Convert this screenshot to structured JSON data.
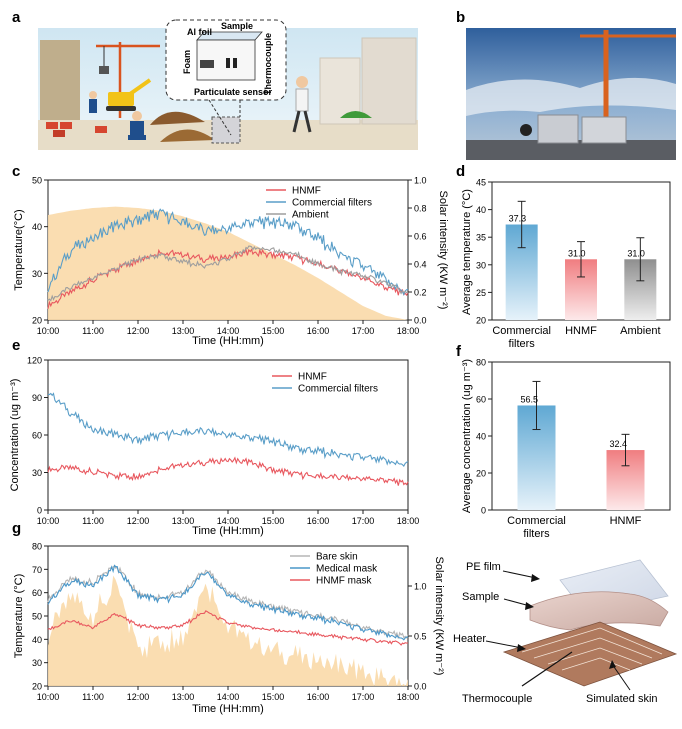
{
  "panels": {
    "a": {
      "label": "a",
      "inset_labels": {
        "al_foil": "Al foil",
        "sample": "Sample",
        "foam": "Foam",
        "thermocouple": "Thermocouple",
        "particulate_sensor": "Particulate sensor"
      }
    },
    "b": {
      "label": "b"
    },
    "c": {
      "label": "c"
    },
    "d": {
      "label": "d"
    },
    "e": {
      "label": "e"
    },
    "f": {
      "label": "f"
    },
    "g": {
      "label": "g"
    },
    "h_diagram": {
      "labels": {
        "pe_film": "PE film",
        "sample": "Sample",
        "heater": "Heater",
        "thermocouple": "Thermocouple",
        "simulated_skin": "Simulated skin"
      }
    }
  },
  "time_ticks": [
    "10:00",
    "11:00",
    "12:00",
    "13:00",
    "14:00",
    "15:00",
    "16:00",
    "17:00",
    "18:00"
  ],
  "chart_data": [
    {
      "id": "c",
      "type": "line",
      "xlabel": "Time (HH:mm)",
      "ylabel": "Temperature(°C)",
      "y2label": "Solar intensity (KW m⁻²)",
      "ylim": [
        20,
        50
      ],
      "yticks": [
        "20",
        "30",
        "40",
        "50"
      ],
      "y2lim": [
        0,
        1.0
      ],
      "y2ticks": [
        "0.0",
        "0.2",
        "0.4",
        "0.6",
        "0.8",
        "1.0"
      ],
      "legend_position": "top-center",
      "x_hours": [
        10,
        10.5,
        11,
        11.5,
        12,
        12.5,
        13,
        13.5,
        14,
        14.5,
        15,
        15.5,
        16,
        16.5,
        17,
        17.5,
        18
      ],
      "series": [
        {
          "name": "HNMF",
          "color": "#e8585f",
          "values": [
            23,
            26,
            28.5,
            31,
            33,
            34.5,
            34,
            33,
            33.5,
            34.5,
            34,
            33.5,
            32,
            30.5,
            29,
            27,
            25.5
          ]
        },
        {
          "name": "Commercial filters",
          "color": "#5a9ec8",
          "values": [
            27,
            35,
            37.5,
            40,
            41.5,
            43,
            41,
            39,
            39.5,
            41,
            41,
            40.5,
            37.5,
            34,
            31.5,
            28.5,
            25.5
          ]
        },
        {
          "name": "Ambient",
          "color": "#9e9e9e",
          "values": [
            24,
            27,
            29,
            31,
            33,
            34,
            32.5,
            31.5,
            33,
            35.5,
            35,
            34,
            32,
            30.5,
            29.5,
            28,
            25.5
          ]
        }
      ],
      "area": {
        "color": "#fad9a9",
        "axis": "y2",
        "values": [
          0.75,
          0.78,
          0.8,
          0.81,
          0.8,
          0.78,
          0.74,
          0.69,
          0.63,
          0.55,
          0.47,
          0.39,
          0.3,
          0.2,
          0.1,
          0.03,
          0.0
        ]
      }
    },
    {
      "id": "d",
      "type": "bar",
      "ylabel": "Average temperature (°C)",
      "ylim": [
        20,
        45
      ],
      "yticks": [
        "20",
        "25",
        "30",
        "35",
        "40",
        "45"
      ],
      "categories": [
        "Commercial filters",
        "HNMF",
        "Ambient"
      ],
      "values": [
        37.3,
        31.0,
        31.0
      ],
      "errors": [
        4.2,
        3.2,
        3.9
      ],
      "value_labels": [
        "37.3",
        "31.0",
        "31.0"
      ],
      "colors": [
        "#5fa8d3",
        "#f07d80",
        "#8f8f8f"
      ]
    },
    {
      "id": "e",
      "type": "line",
      "xlabel": "Time (HH:mm)",
      "ylabel": "Concentration (ug m⁻³)",
      "ylim": [
        0,
        120
      ],
      "yticks": [
        "0",
        "30",
        "60",
        "90",
        "120"
      ],
      "legend_position": "top-right",
      "x_hours": [
        10,
        10.5,
        11,
        11.5,
        12,
        12.5,
        13,
        13.5,
        14,
        14.5,
        15,
        15.5,
        16,
        16.5,
        17,
        17.5,
        18
      ],
      "series": [
        {
          "name": "HNMF",
          "color": "#e8585f",
          "values": [
            32,
            34,
            30,
            28,
            27,
            33,
            36,
            38,
            40,
            38,
            32,
            29,
            27,
            26,
            25,
            24,
            21
          ]
        },
        {
          "name": "Commercial filters",
          "color": "#5a9ec8",
          "values": [
            95,
            78,
            64,
            60,
            56,
            60,
            62,
            63,
            60,
            58,
            55,
            50,
            47,
            44,
            42,
            39,
            36
          ]
        }
      ]
    },
    {
      "id": "f",
      "type": "bar",
      "ylabel": "Average concentration (ug m⁻³)",
      "ylim": [
        0,
        80
      ],
      "yticks": [
        "0",
        "20",
        "40",
        "60",
        "80"
      ],
      "categories": [
        "Commercial filters",
        "HNMF"
      ],
      "values": [
        56.5,
        32.4
      ],
      "errors": [
        13,
        8.5
      ],
      "value_labels": [
        "56.5",
        "32.4"
      ],
      "colors": [
        "#5fa8d3",
        "#f07d80"
      ]
    },
    {
      "id": "g",
      "type": "line",
      "xlabel": "Time (HH:mm)",
      "ylabel": "Temperature (°C)",
      "y2label": "Solar intensity (KW m⁻²)",
      "ylim": [
        20,
        80
      ],
      "yticks": [
        "20",
        "30",
        "40",
        "50",
        "60",
        "70",
        "80"
      ],
      "y2lim": [
        0,
        1.4
      ],
      "y2ticks": [
        "0.0",
        "0.5",
        "1.0"
      ],
      "legend_position": "top-right",
      "x_hours": [
        10,
        10.5,
        11,
        11.5,
        12,
        12.5,
        13,
        13.5,
        14,
        14.5,
        15,
        15.5,
        16,
        16.5,
        17,
        17.5,
        18
      ],
      "series": [
        {
          "name": "Bare skin",
          "color": "#b5b5b5",
          "values": [
            57,
            66,
            64,
            72,
            60,
            58,
            60,
            70,
            60,
            56,
            54,
            52,
            50,
            48,
            45,
            43,
            41
          ]
        },
        {
          "name": "Medical mask",
          "color": "#4a97c9",
          "values": [
            56,
            65,
            63,
            71,
            59,
            57,
            59,
            69,
            59,
            55,
            53,
            51,
            49,
            47,
            44,
            42,
            40
          ]
        },
        {
          "name": "HNMF mask",
          "color": "#e8585f",
          "values": [
            44,
            48,
            45,
            51,
            46,
            45,
            46,
            52,
            47,
            45,
            44,
            43,
            42,
            41,
            40,
            39,
            38
          ]
        }
      ],
      "area": {
        "color": "#fad9a9",
        "axis": "y2",
        "values": [
          0.5,
          0.9,
          0.7,
          1.0,
          0.4,
          0.45,
          0.5,
          1.05,
          0.6,
          0.45,
          0.35,
          0.3,
          0.25,
          0.2,
          0.12,
          0.06,
          0.0
        ]
      }
    }
  ]
}
